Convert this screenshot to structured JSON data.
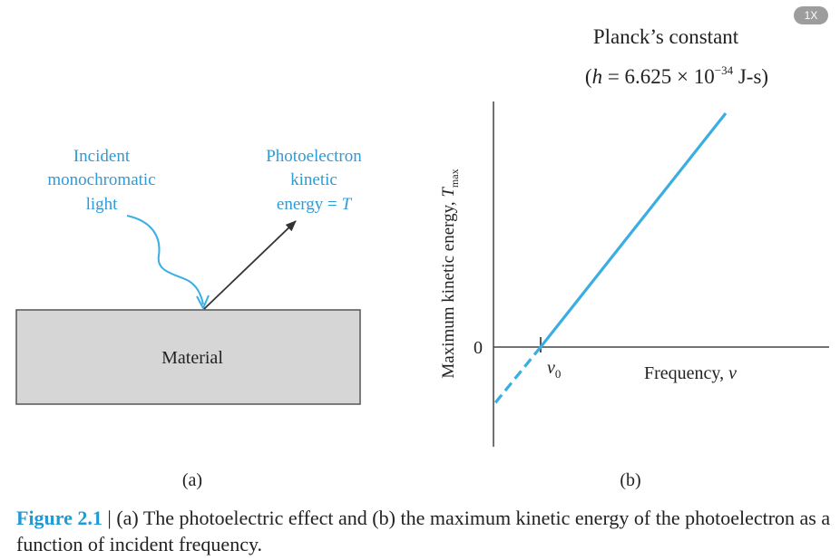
{
  "zoom_badge": "1X",
  "panel_a": {
    "incident_light_lines": [
      "Incident",
      "monochromatic",
      "light"
    ],
    "photoelectron_lines": [
      "Photoelectron",
      "kinetic",
      "energy = "
    ],
    "energy_symbol": "T",
    "material_label": "Material",
    "panel_label": "(a)"
  },
  "panel_b": {
    "planck_title": "Planck’s constant",
    "planck_value_prefix": "(",
    "planck_h": "h",
    "planck_value_mid": " = 6.625 × 10",
    "planck_exponent": "−34",
    "planck_value_suffix": " J-s)",
    "y_axis_label": "Maximum kinetic energy, ",
    "y_axis_symbol": "T",
    "y_axis_subscript": "max",
    "origin_tick": "0",
    "threshold_label": "ν",
    "threshold_subscript": "0",
    "x_axis_label": "Frequency, ",
    "x_axis_symbol": "ν",
    "panel_label": "(b)"
  },
  "caption": {
    "figure_label": "Figure 2.1",
    "text": " | (a) The photoelectric effect and (b) the maximum kinetic energy of the photoelectron as a function of incident frequency."
  },
  "colors": {
    "accent_blue": "#3aaee3",
    "material_fill": "#d6d6d6",
    "axis": "#444444"
  }
}
